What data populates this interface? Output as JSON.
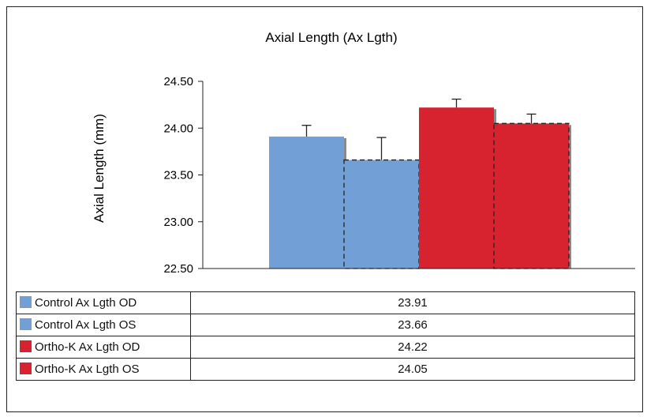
{
  "chart_data": {
    "type": "bar",
    "title": "Axial Length (Ax Lgth)",
    "ylabel": "Axial Length (mm)",
    "xlabel": "",
    "ylim": [
      22.5,
      24.5
    ],
    "yticks": [
      "22.50",
      "23.00",
      "23.50",
      "24.00",
      "24.50"
    ],
    "grid": false,
    "legend": "bottom table",
    "series": [
      {
        "name": "Control Ax Lgth OD",
        "value": 23.91,
        "display": "23.91",
        "error": 0.12,
        "color": "#729fd6",
        "dashed": false
      },
      {
        "name": "Control Ax Lgth OS",
        "value": 23.66,
        "display": "23.66",
        "error": 0.24,
        "color": "#729fd6",
        "dashed": true
      },
      {
        "name": "Ortho-K Ax Lgth OD",
        "value": 24.22,
        "display": "24.22",
        "error": 0.09,
        "color": "#d7232f",
        "dashed": false
      },
      {
        "name": "Ortho-K Ax Lgth OS",
        "value": 24.05,
        "display": "24.05",
        "error": 0.1,
        "color": "#d7232f",
        "dashed": true
      }
    ]
  }
}
